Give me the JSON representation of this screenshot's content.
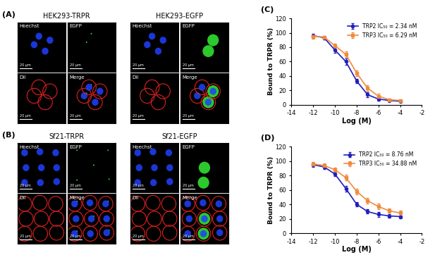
{
  "figure": {
    "image_panels": [
      {
        "label": "(A)",
        "groups": [
          {
            "title": "HEK293-TRPR",
            "channels": [
              "Hoechst",
              "EGFP",
              "DiI",
              "Merge"
            ],
            "scale_bar": "20 μm"
          },
          {
            "title": "HEK293-EGFP",
            "channels": [
              "Hoechst",
              "EGFP",
              "DiI",
              "Merge"
            ],
            "scale_bar": "20 μm"
          }
        ]
      },
      {
        "label": "(B)",
        "groups": [
          {
            "title": "Sf21-TRPR",
            "channels": [
              "Hoechst",
              "EGFP",
              "DiI",
              "Merge"
            ],
            "scale_bar": "20 μm"
          },
          {
            "title": "Sf21-EGFP",
            "channels": [
              "Hoechst",
              "EGFP",
              "DiI",
              "Merge"
            ],
            "scale_bar": "20 μm"
          }
        ]
      }
    ]
  },
  "chart_data": [
    {
      "type": "line",
      "panel_label": "(C)",
      "x_label": "Log (M)",
      "y_label": "Bound to TRPR (%)",
      "x": [
        -12,
        -11,
        -10,
        -9,
        -8,
        -7,
        -6,
        -5,
        -4
      ],
      "xlim": [
        -14,
        -2
      ],
      "xticks": [
        -14,
        -12,
        -10,
        -8,
        -6,
        -4,
        -2
      ],
      "ylim": [
        0,
        120
      ],
      "yticks": [
        0,
        20,
        40,
        60,
        80,
        100,
        120
      ],
      "legend": "upper right",
      "series": [
        {
          "name": "TRP2 IC₅₀ = 2.34 nM",
          "color": "#1f1fbf",
          "marker": "o",
          "values": [
            96,
            93,
            76,
            60,
            33,
            14,
            8,
            6,
            5
          ],
          "errors": [
            3,
            2,
            4,
            4,
            3,
            3,
            2,
            1,
            1
          ]
        },
        {
          "name": "TRP3 IC₅₀ = 6.29 nM",
          "color": "#f08a3c",
          "marker": "s",
          "values": [
            95,
            94,
            82,
            70,
            44,
            23,
            12,
            7,
            6
          ],
          "errors": [
            3,
            2,
            3,
            4,
            4,
            4,
            3,
            2,
            1
          ]
        }
      ]
    },
    {
      "type": "line",
      "panel_label": "(D)",
      "x_label": "Log (M)",
      "y_label": "Bound to TRPR (%)",
      "x": [
        -12,
        -11,
        -10,
        -9,
        -8,
        -7,
        -6,
        -5,
        -4
      ],
      "xlim": [
        -14,
        -2
      ],
      "xticks": [
        -14,
        -12,
        -10,
        -8,
        -6,
        -4,
        -2
      ],
      "ylim": [
        0,
        120
      ],
      "yticks": [
        0,
        20,
        40,
        60,
        80,
        100,
        120
      ],
      "legend": "upper right",
      "series": [
        {
          "name": "TRP2 IC₅₀ = 8.76 nM",
          "color": "#1f1fbf",
          "marker": "o",
          "values": [
            95,
            92,
            82,
            62,
            40,
            30,
            26,
            24,
            23
          ],
          "errors": [
            3,
            3,
            3,
            4,
            3,
            3,
            3,
            2,
            2
          ]
        },
        {
          "name": "TRP3 IC₅₀ = 34.88 nM",
          "color": "#f08a3c",
          "marker": "s",
          "values": [
            96,
            94,
            88,
            77,
            58,
            45,
            37,
            31,
            28
          ],
          "errors": [
            3,
            3,
            3,
            4,
            4,
            4,
            4,
            3,
            3
          ]
        }
      ]
    }
  ]
}
